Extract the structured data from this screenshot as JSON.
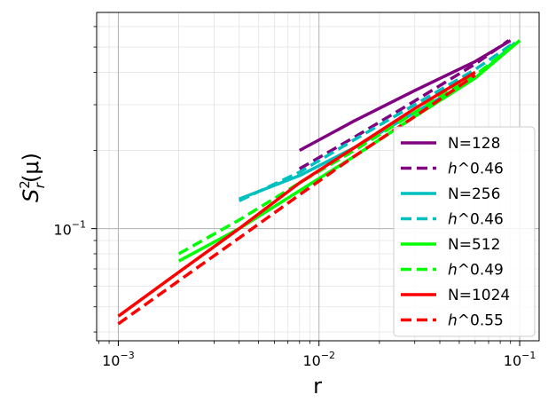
{
  "chart_data": {
    "type": "line",
    "xscale": "log",
    "yscale": "log",
    "xlim": [
      0.00078,
      0.125
    ],
    "ylim": [
      0.037,
      0.68
    ],
    "grid": {
      "major": true,
      "minor": true
    },
    "xlabel": "r",
    "ylabel_base": "S",
    "ylabel_sup": "2",
    "ylabel_sub": "r",
    "ylabel_tail": "(μ)",
    "x_ticks": [
      {
        "value": 0.001,
        "base": "10",
        "exp": "−3"
      },
      {
        "value": 0.01,
        "base": "10",
        "exp": "−2"
      },
      {
        "value": 0.1,
        "base": "10",
        "exp": "−1"
      }
    ],
    "y_ticks": [
      {
        "value": 0.1,
        "base": "10",
        "exp": "−1"
      }
    ],
    "legend_position": "lower-right",
    "series": [
      {
        "name": "N=128",
        "color": "#800080",
        "dash": "solid",
        "x": [
          0.008,
          0.015,
          0.03,
          0.06,
          0.09
        ],
        "y": [
          0.2,
          0.26,
          0.34,
          0.44,
          0.53
        ]
      },
      {
        "name": "h^0.46",
        "color": "#800080",
        "dash": "dashed",
        "x": [
          0.008,
          0.015,
          0.03,
          0.06,
          0.088
        ],
        "y": [
          0.17,
          0.225,
          0.31,
          0.43,
          0.53
        ]
      },
      {
        "name": "N=256",
        "color": "#00bfbf",
        "dash": "solid",
        "x": [
          0.004,
          0.008,
          0.015,
          0.03,
          0.06,
          0.095
        ],
        "y": [
          0.13,
          0.16,
          0.205,
          0.28,
          0.38,
          0.52
        ]
      },
      {
        "name": "h^0.46",
        "color": "#00bfbf",
        "dash": "dashed",
        "x": [
          0.004,
          0.008,
          0.015,
          0.03,
          0.06,
          0.094
        ],
        "y": [
          0.128,
          0.165,
          0.22,
          0.3,
          0.41,
          0.52
        ]
      },
      {
        "name": "N=512",
        "color": "#00ff00",
        "dash": "solid",
        "x": [
          0.002,
          0.004,
          0.008,
          0.015,
          0.03,
          0.06,
          0.1
        ],
        "y": [
          0.075,
          0.1,
          0.14,
          0.19,
          0.27,
          0.38,
          0.53
        ]
      },
      {
        "name": "h^0.49",
        "color": "#00ff00",
        "dash": "dashed",
        "x": [
          0.002,
          0.004,
          0.008,
          0.015,
          0.03,
          0.06,
          0.1
        ],
        "y": [
          0.08,
          0.108,
          0.15,
          0.2,
          0.28,
          0.39,
          0.53
        ]
      },
      {
        "name": "N=1024",
        "color": "#ff0000",
        "dash": "solid",
        "x": [
          0.001,
          0.002,
          0.004,
          0.008,
          0.015,
          0.03,
          0.06
        ],
        "y": [
          0.046,
          0.068,
          0.1,
          0.15,
          0.205,
          0.29,
          0.4
        ]
      },
      {
        "name": "h^0.55",
        "color": "#ff0000",
        "dash": "dashed",
        "x": [
          0.001,
          0.002,
          0.004,
          0.008,
          0.015,
          0.03,
          0.06
        ],
        "y": [
          0.043,
          0.063,
          0.092,
          0.135,
          0.19,
          0.27,
          0.39
        ]
      }
    ],
    "legend": [
      {
        "text": "N=128",
        "italic_h": false,
        "exp": ""
      },
      {
        "text": "",
        "italic_h": true,
        "exp": "^0.46"
      },
      {
        "text": "N=256",
        "italic_h": false,
        "exp": ""
      },
      {
        "text": "",
        "italic_h": true,
        "exp": "^0.46"
      },
      {
        "text": "N=512",
        "italic_h": false,
        "exp": ""
      },
      {
        "text": "",
        "italic_h": true,
        "exp": "^0.49"
      },
      {
        "text": "N=1024",
        "italic_h": false,
        "exp": ""
      },
      {
        "text": "",
        "italic_h": true,
        "exp": "^0.55"
      }
    ]
  }
}
